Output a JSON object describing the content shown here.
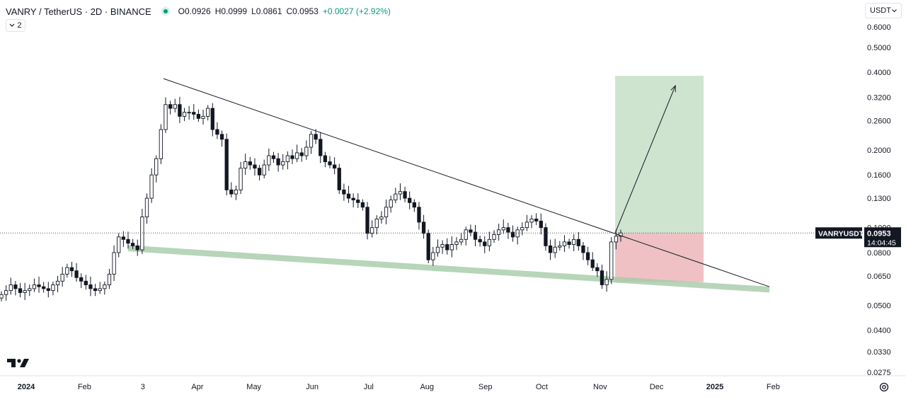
{
  "header": {
    "symbol_line": "VANRY / TetherUS · 2D · BINANCE",
    "open": "O0.0926",
    "high": "H0.0999",
    "low": "L0.0861",
    "close": "C0.0953",
    "change": "+0.0027 (+2.92%)",
    "indicator_count": "2"
  },
  "currency_selector": "USDT",
  "symbol_label": "VANRYUSDT",
  "price_label": "0.0953",
  "countdown": "14:04:45",
  "colors": {
    "up": "#089981",
    "candle": "#131722",
    "support_band": "#a5cba8",
    "target_zone": "#cfe4cf",
    "stop_zone": "#efc1c4"
  },
  "chart_data": {
    "type": "candlestick",
    "symbol": "VANRYUSDT",
    "timeframe": "2D",
    "y_scale": "log",
    "ylim": [
      0.0265,
      0.64
    ],
    "y_ticks": [
      "0.6000",
      "0.5000",
      "0.4000",
      "0.3200",
      "0.2600",
      "0.2000",
      "0.1600",
      "0.1300",
      "0.1000",
      "0.0800",
      "0.0650",
      "0.0500",
      "0.0400",
      "0.0330",
      "0.0275"
    ],
    "x_ticks": [
      {
        "label": "2024",
        "date": "2024-01-01",
        "bold": true
      },
      {
        "label": "Feb",
        "date": "2024-02-01"
      },
      {
        "label": "3",
        "date": "2024-03-03"
      },
      {
        "label": "Apr",
        "date": "2024-04-01"
      },
      {
        "label": "May",
        "date": "2024-05-01"
      },
      {
        "label": "Jun",
        "date": "2024-06-01"
      },
      {
        "label": "Jul",
        "date": "2024-07-01"
      },
      {
        "label": "Aug",
        "date": "2024-08-01"
      },
      {
        "label": "Sep",
        "date": "2024-09-01"
      },
      {
        "label": "Oct",
        "date": "2024-10-01"
      },
      {
        "label": "Nov",
        "date": "2024-11-01"
      },
      {
        "label": "Dec",
        "date": "2024-12-01"
      },
      {
        "label": "2025",
        "date": "2025-01-01",
        "bold": true
      },
      {
        "label": "Feb",
        "date": "2025-02-01"
      }
    ],
    "closes": [
      0.055,
      0.057,
      0.06,
      0.058,
      0.056,
      0.057,
      0.058,
      0.06,
      0.059,
      0.058,
      0.057,
      0.06,
      0.062,
      0.066,
      0.07,
      0.068,
      0.064,
      0.062,
      0.06,
      0.058,
      0.057,
      0.058,
      0.06,
      0.066,
      0.08,
      0.092,
      0.09,
      0.087,
      0.085,
      0.082,
      0.11,
      0.13,
      0.16,
      0.185,
      0.24,
      0.3,
      0.29,
      0.3,
      0.27,
      0.28,
      0.28,
      0.275,
      0.265,
      0.27,
      0.29,
      0.24,
      0.23,
      0.22,
      0.14,
      0.135,
      0.14,
      0.17,
      0.18,
      0.175,
      0.17,
      0.16,
      0.175,
      0.19,
      0.185,
      0.175,
      0.18,
      0.19,
      0.185,
      0.195,
      0.19,
      0.205,
      0.23,
      0.22,
      0.19,
      0.18,
      0.175,
      0.17,
      0.14,
      0.135,
      0.13,
      0.128,
      0.125,
      0.12,
      0.095,
      0.1,
      0.108,
      0.11,
      0.12,
      0.128,
      0.135,
      0.138,
      0.13,
      0.125,
      0.12,
      0.105,
      0.095,
      0.075,
      0.08,
      0.084,
      0.086,
      0.082,
      0.086,
      0.088,
      0.09,
      0.098,
      0.096,
      0.09,
      0.088,
      0.085,
      0.09,
      0.094,
      0.098,
      0.1,
      0.096,
      0.092,
      0.098,
      0.1,
      0.105,
      0.108,
      0.106,
      0.1,
      0.085,
      0.08,
      0.084,
      0.085,
      0.088,
      0.086,
      0.09,
      0.085,
      0.08,
      0.075,
      0.07,
      0.068,
      0.06,
      0.063,
      0.088,
      0.0926,
      0.0953
    ],
    "trendline_upper": {
      "from": {
        "date": "2024-03-14",
        "price": 0.378
      },
      "to": {
        "date": "2025-01-30",
        "price": 0.059
      }
    },
    "support_band": {
      "from": {
        "date": "2024-02-24",
        "top": 0.0855,
        "bottom": 0.081
      },
      "to": {
        "date": "2025-01-30",
        "top": 0.059,
        "bottom": 0.056
      }
    },
    "position": {
      "from_date": "2024-11-09",
      "to_date": "2024-12-26",
      "entry": 0.0953,
      "target": 0.388,
      "stop": 0.0615
    },
    "projection_arrow": {
      "from": {
        "date": "2024-11-09",
        "price": 0.0953
      },
      "to": {
        "date": "2024-12-11",
        "price": 0.355
      }
    },
    "current_price": 0.0953
  }
}
